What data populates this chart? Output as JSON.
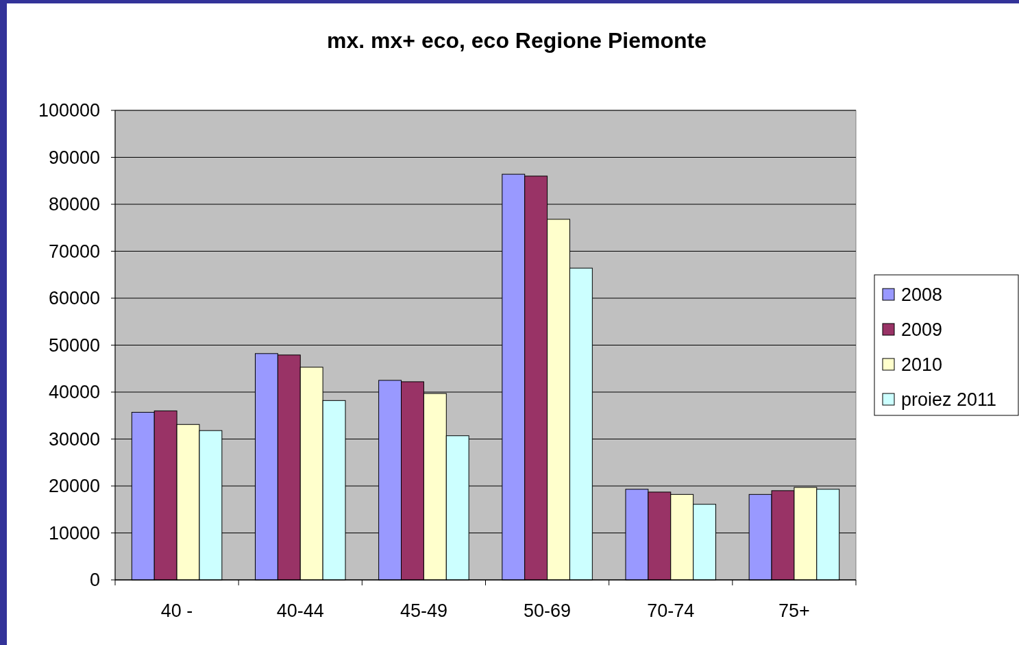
{
  "chart_data": {
    "type": "bar",
    "title": "mx. mx+ eco, eco Regione Piemonte",
    "categories": [
      "40 -",
      "40-44",
      "45-49",
      "50-69",
      "70-74",
      "75+"
    ],
    "series": [
      {
        "name": "2008",
        "color": "#9999ff",
        "values": [
          35700,
          48200,
          42500,
          86400,
          19300,
          18200
        ]
      },
      {
        "name": "2009",
        "color": "#993366",
        "values": [
          36000,
          47900,
          42200,
          86000,
          18700,
          19000
        ]
      },
      {
        "name": "2010",
        "color": "#ffffcc",
        "values": [
          33100,
          45300,
          39700,
          76800,
          18200,
          19700
        ]
      },
      {
        "name": "proiez 2011",
        "color": "#ccffff",
        "values": [
          31800,
          38200,
          30700,
          66400,
          16100,
          19300
        ]
      }
    ],
    "ylim": [
      0,
      100000
    ],
    "yticks": [
      0,
      10000,
      20000,
      30000,
      40000,
      50000,
      60000,
      70000,
      80000,
      90000,
      100000
    ],
    "grid": "y",
    "legend": "right"
  }
}
